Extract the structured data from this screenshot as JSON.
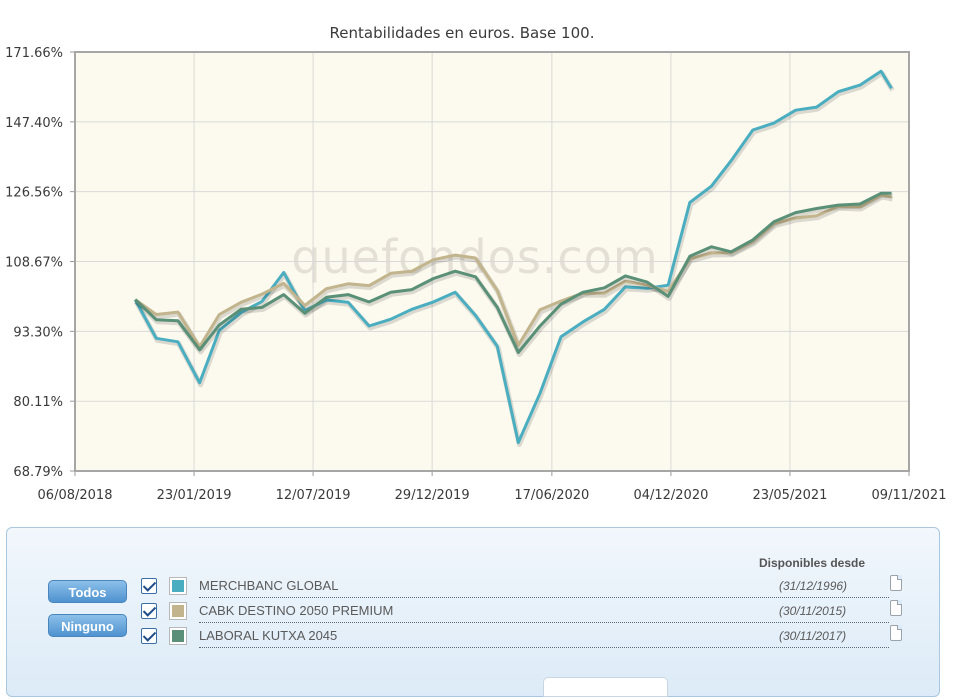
{
  "chart_data": {
    "type": "line",
    "title": "Rentabilidades en euros. Base 100.",
    "watermark": "quefondos.com",
    "xlabel": "",
    "ylabel": "",
    "x_ticks": [
      "06/08/2018",
      "23/01/2019",
      "12/07/2019",
      "29/12/2019",
      "17/06/2020",
      "04/12/2020",
      "23/05/2021",
      "09/11/2021"
    ],
    "y_ticks": [
      "68.79%",
      "80.11%",
      "93.30%",
      "108.67%",
      "126.56%",
      "147.40%",
      "171.66%"
    ],
    "y_tick_values": [
      68.79,
      80.11,
      93.3,
      108.67,
      126.56,
      147.4,
      171.66
    ],
    "y_scale": "log",
    "ylim": [
      68.79,
      171.66
    ],
    "xlim": [
      "2018-08-06",
      "2021-11-09"
    ],
    "grid": true,
    "x": [
      "2018-10-31",
      "2018-11-30",
      "2018-12-31",
      "2019-01-31",
      "2019-02-28",
      "2019-03-31",
      "2019-04-30",
      "2019-05-31",
      "2019-06-30",
      "2019-07-31",
      "2019-08-31",
      "2019-09-30",
      "2019-10-31",
      "2019-11-30",
      "2019-12-31",
      "2020-01-31",
      "2020-02-29",
      "2020-03-31",
      "2020-04-30",
      "2020-05-31",
      "2020-06-30",
      "2020-07-31",
      "2020-08-31",
      "2020-09-30",
      "2020-10-31",
      "2020-11-30",
      "2020-12-31",
      "2021-01-31",
      "2021-02-28",
      "2021-03-31",
      "2021-04-30",
      "2021-05-31",
      "2021-06-30",
      "2021-07-31",
      "2021-08-31",
      "2021-09-30",
      "2021-10-15"
    ],
    "series": [
      {
        "name": "MERCHBANC GLOBAL",
        "color": "#4aaec0",
        "values": [
          100.0,
          91.9,
          91.2,
          83.4,
          93.5,
          97.2,
          99.6,
          106.1,
          97.6,
          99.9,
          99.4,
          94.4,
          95.8,
          97.9,
          99.5,
          101.6,
          96.6,
          90.3,
          73.2,
          81.5,
          92.2,
          95.2,
          97.9,
          102.8,
          102.5,
          103.2,
          123.6,
          128.1,
          135.4,
          144.8,
          147.0,
          151.2,
          152.2,
          157.4,
          159.7,
          164.6,
          158.6
        ]
      },
      {
        "name": "CABK DESTINO 2050 PREMIUM",
        "color": "#c2b48c",
        "values": [
          100.0,
          96.8,
          97.3,
          90.2,
          96.8,
          99.4,
          101.2,
          103.6,
          98.7,
          102.4,
          103.5,
          103.1,
          105.9,
          106.4,
          109.1,
          110.2,
          109.5,
          102.0,
          90.5,
          97.8,
          99.7,
          101.4,
          101.4,
          104.1,
          103.2,
          101.8,
          109.3,
          110.7,
          110.8,
          113.5,
          118.0,
          119.5,
          120.1,
          122.6,
          122.4,
          125.6,
          125.1
        ]
      },
      {
        "name": "LABORAL KUTXA 2045",
        "color": "#5a9077",
        "values": [
          100.0,
          95.7,
          95.5,
          89.6,
          94.6,
          97.9,
          98.3,
          101.1,
          97.1,
          100.5,
          101.1,
          99.5,
          101.6,
          102.2,
          104.7,
          106.4,
          105.1,
          98.3,
          89.1,
          94.4,
          99.0,
          101.6,
          102.6,
          105.3,
          103.9,
          100.7,
          109.9,
          112.2,
          111.0,
          113.9,
          118.5,
          120.9,
          122.0,
          122.9,
          123.2,
          126.1,
          126.1
        ]
      }
    ]
  },
  "legend": {
    "header": "Disponibles desde",
    "items": [
      {
        "name": "MERCHBANC GLOBAL",
        "date": "(31/12/1996)",
        "color": "#4aaec0"
      },
      {
        "name": "CABK DESTINO 2050 PREMIUM",
        "date": "(30/11/2015)",
        "color": "#c2b48c"
      },
      {
        "name": "LABORAL KUTXA 2045",
        "date": "(30/11/2017)",
        "color": "#5a9077"
      }
    ]
  },
  "buttons": {
    "all": "Todos",
    "none": "Ninguno"
  }
}
